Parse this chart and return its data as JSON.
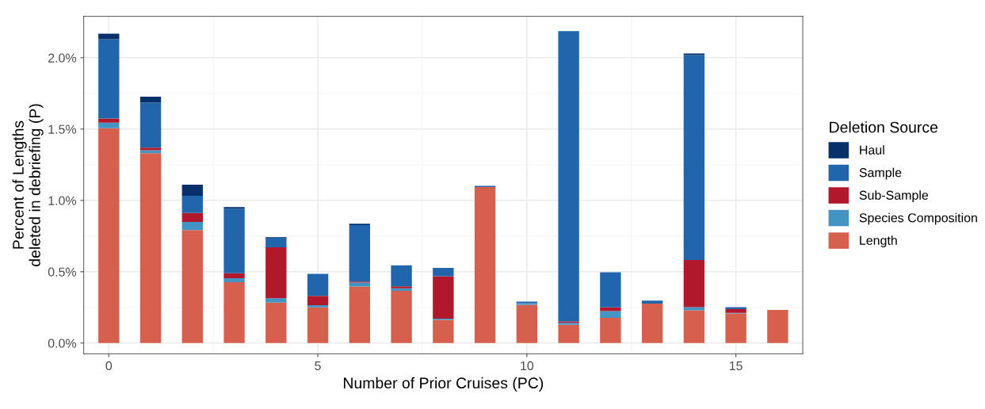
{
  "chart_data": {
    "type": "bar",
    "stacked": true,
    "xlabel": "Number of Prior Cruises (PC)",
    "ylabel": "Percent of Lengths\ndeleted in debriefing (P)",
    "legend_title": "Deletion Source",
    "x": [
      0,
      1,
      2,
      3,
      4,
      5,
      6,
      7,
      8,
      9,
      10,
      11,
      12,
      13,
      14,
      15,
      16
    ],
    "series": [
      {
        "name": "Length",
        "color": "#d6604d",
        "values": [
          1.506,
          1.331,
          0.792,
          0.427,
          0.284,
          0.25,
          0.396,
          0.366,
          0.163,
          1.093,
          0.268,
          0.128,
          0.177,
          0.277,
          0.229,
          0.207,
          0.233
        ]
      },
      {
        "name": "Species Composition",
        "color": "#4393c3",
        "values": [
          0.039,
          0.021,
          0.057,
          0.028,
          0.031,
          0.016,
          0.028,
          0.018,
          0.009,
          0,
          0.012,
          0.014,
          0.047,
          0,
          0.023,
          0.005,
          0
        ]
      },
      {
        "name": "Sub-Sample",
        "color": "#b2182b",
        "values": [
          0.029,
          0.018,
          0.063,
          0.034,
          0.357,
          0.065,
          0.007,
          0.014,
          0.296,
          0,
          0,
          0.01,
          0.026,
          0,
          0.331,
          0.026,
          0
        ]
      },
      {
        "name": "Sample",
        "color": "#2166ac",
        "values": [
          0.556,
          0.315,
          0.121,
          0.453,
          0.067,
          0.154,
          0.396,
          0.147,
          0.059,
          0.009,
          0.011,
          2.034,
          0.247,
          0.021,
          1.435,
          0.014,
          0
        ]
      },
      {
        "name": "Haul",
        "color": "#08306b",
        "values": [
          0.038,
          0.042,
          0.077,
          0.011,
          0.005,
          0,
          0.01,
          0,
          0,
          0,
          0,
          0,
          0,
          0,
          0.012,
          0,
          0
        ]
      }
    ],
    "xlim": [
      -0.6,
      16.6
    ],
    "xticks": [
      0,
      5,
      10,
      15
    ],
    "ylim": [
      -0.075,
      2.29
    ],
    "yticks": [
      {
        "value": 0,
        "label": "0.0%"
      },
      {
        "value": 0.5,
        "label": "0.5%"
      },
      {
        "value": 1.0,
        "label": "1.0%"
      },
      {
        "value": 1.5,
        "label": "1.5%"
      },
      {
        "value": 2.0,
        "label": "2.0%"
      }
    ],
    "grid": true,
    "legend": "right"
  }
}
